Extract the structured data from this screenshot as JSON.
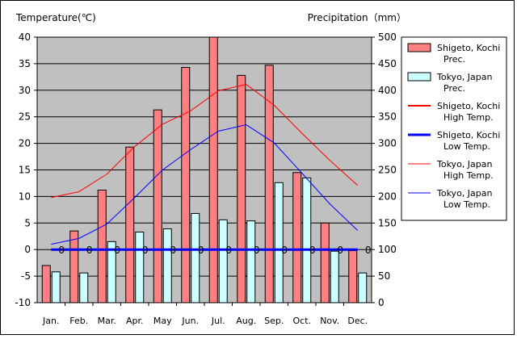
{
  "chart_data": {
    "type": "bar",
    "left_axis_title": "Temperature(℃)",
    "right_axis_title": "Precipitation（mm）",
    "categories": [
      "Jan.",
      "Feb.",
      "Mar.",
      "Apr.",
      "May",
      "Jun.",
      "Jul.",
      "Aug.",
      "Sep.",
      "Oct.",
      "Nov.",
      "Dec."
    ],
    "ylim_left": [
      -10,
      40
    ],
    "ylim_right": [
      0,
      500
    ],
    "yticks_left": [
      40,
      35,
      30,
      25,
      20,
      15,
      10,
      5,
      0,
      -5,
      -10
    ],
    "yticks_right": [
      500,
      450,
      400,
      350,
      300,
      250,
      200,
      150,
      100,
      50,
      0
    ],
    "plot_background": "#c0c0c0",
    "grid": true,
    "legend_position": "right",
    "bar_series": [
      {
        "name": "Shigeto, Kochi Prec.",
        "legend_lines": [
          "Shigeto, Kochi",
          "Prec."
        ],
        "axis": "right",
        "color": "#ff8080",
        "values": [
          70,
          135,
          212,
          293,
          363,
          443,
          500,
          428,
          447,
          245,
          150,
          98
        ]
      },
      {
        "name": "Tokyo, Japan Prec.",
        "legend_lines": [
          "Tokyo, Japan",
          "Prec."
        ],
        "axis": "right",
        "color": "#ccffff",
        "values": [
          58,
          56,
          115,
          133,
          139,
          168,
          156,
          154,
          226,
          235,
          97,
          56
        ]
      }
    ],
    "line_series": [
      {
        "name": "Shigeto, Kochi High Temp.",
        "legend_lines": [
          "Shigeto, Kochi",
          "High Temp."
        ],
        "axis": "left",
        "color": "#ff0000",
        "width": 2,
        "values": [
          0,
          0,
          0,
          0,
          0,
          0,
          0,
          0,
          0,
          0,
          0,
          0
        ]
      },
      {
        "name": "Shigeto, Kochi Low Temp.",
        "legend_lines": [
          "Shigeto, Kochi",
          "Low Temp."
        ],
        "axis": "left",
        "color": "#0000ff",
        "width": 3,
        "values": [
          0,
          0,
          0,
          0,
          0,
          0,
          0,
          0,
          0,
          0,
          0,
          0
        ]
      },
      {
        "name": "Tokyo, Japan High Temp.",
        "legend_lines": [
          "Tokyo, Japan",
          "High Temp."
        ],
        "axis": "left",
        "color": "#ff0000",
        "width": 1,
        "values": [
          9.8,
          10.9,
          14.2,
          19.4,
          23.6,
          26.1,
          29.9,
          31.1,
          27.2,
          21.9,
          16.8,
          12.1
        ]
      },
      {
        "name": "Tokyo, Japan Low Temp.",
        "legend_lines": [
          "Tokyo, Japan",
          "Low Temp."
        ],
        "axis": "left",
        "color": "#0000ff",
        "width": 1,
        "values": [
          1.0,
          2.1,
          4.8,
          9.8,
          15.0,
          18.8,
          22.3,
          23.5,
          20.1,
          14.4,
          8.6,
          3.6
        ]
      }
    ],
    "zero_labels": [
      "0",
      "0",
      "0",
      "0",
      "0",
      "0",
      "0",
      "0",
      "0",
      "0",
      "0",
      "0"
    ]
  }
}
